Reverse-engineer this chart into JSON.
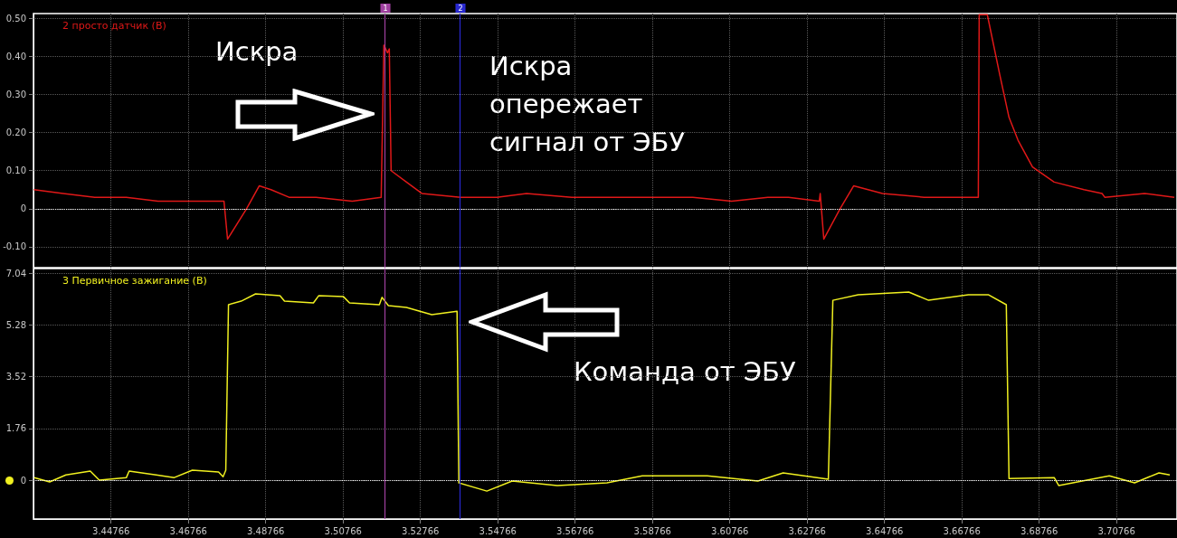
{
  "chart_data": [
    {
      "type": "line",
      "legend": "top left",
      "grid": true,
      "marker": "none",
      "tick_labels": "y",
      "annotations": [
        "Искра",
        "Искра опережает сигнал от ЭБУ",
        "1",
        "2"
      ],
      "xlim": [
        3.4276,
        3.7233
      ],
      "xticks": [
        3.44766,
        3.46766,
        3.48766,
        3.50766,
        3.52766,
        3.54766,
        3.56766,
        3.58766,
        3.60766,
        3.62766,
        3.64766,
        3.66766,
        3.68766,
        3.70766
      ],
      "ylim": [
        -0.155,
        0.513
      ],
      "yticks": [
        {
          "value": -0.1,
          "label": "-0.10"
        },
        0,
        {
          "value": 0.1,
          "label": "0.10"
        },
        {
          "value": 0.2,
          "label": "0.20"
        },
        {
          "value": 0.3,
          "label": "0.30"
        },
        {
          "value": 0.4,
          "label": "0.40"
        },
        {
          "value": 0.5,
          "label": "0.50"
        }
      ],
      "ref_lines": [
        {
          "axis": "y",
          "value": 0,
          "color": "#ffffff",
          "line_style": "dotted"
        },
        {
          "axis": "x",
          "value": 3.51844,
          "color": "#a040a0",
          "line_style": "solid"
        },
        {
          "axis": "x",
          "value": 3.53783,
          "color": "#2828d0",
          "line_style": "solid"
        }
      ],
      "series": [
        {
          "name": "2 просто датчик (В)",
          "color": "#e01818",
          "x": [
            3.4277,
            3.43528,
            3.44346,
            3.45163,
            3.45981,
            3.46798,
            3.47686,
            3.47779,
            3.4827,
            3.48597,
            3.48901,
            3.49368,
            3.50069,
            3.51003,
            3.51751,
            3.51821,
            3.51914,
            3.51961,
            3.52008,
            3.52405,
            3.52802,
            3.53806,
            3.54741,
            3.55512,
            3.5668,
            3.58245,
            3.5981,
            3.60814,
            3.61749,
            3.62286,
            3.6308,
            3.63104,
            3.63197,
            3.63618,
            3.63968,
            3.64715,
            3.6579,
            3.67192,
            3.67215,
            3.67425,
            3.67752,
            3.67986,
            3.68219,
            3.68593,
            3.69154,
            3.69925,
            3.70392,
            3.70462,
            3.7149,
            3.72261
          ],
          "values": [
            0.05,
            0.04,
            0.03,
            0.03,
            0.02,
            0.02,
            0.02,
            -0.08,
            0.0,
            0.06,
            0.05,
            0.03,
            0.03,
            0.02,
            0.03,
            0.43,
            0.41,
            0.42,
            0.1,
            0.07,
            0.04,
            0.03,
            0.03,
            0.04,
            0.03,
            0.03,
            0.03,
            0.02,
            0.03,
            0.03,
            0.02,
            0.04,
            -0.08,
            0.0,
            0.06,
            0.04,
            0.03,
            0.03,
            0.51,
            0.51,
            0.35,
            0.24,
            0.18,
            0.11,
            0.07,
            0.05,
            0.04,
            0.03,
            0.04,
            0.03
          ]
        }
      ]
    },
    {
      "type": "line",
      "legend": "top left",
      "grid": true,
      "marker": "none",
      "annotations": [
        "Команда от ЭБУ"
      ],
      "xlim": [
        3.4276,
        3.7233
      ],
      "xticks": [
        3.44766,
        3.46766,
        3.48766,
        3.50766,
        3.52766,
        3.54766,
        3.56766,
        3.58766,
        3.60766,
        3.62766,
        3.64766,
        3.66766,
        3.68766,
        3.70766
      ],
      "ylim": [
        -1.32,
        7.2
      ],
      "yticks": [
        0,
        1.76,
        3.52,
        5.28,
        7.04
      ],
      "ref_lines": [
        {
          "axis": "y",
          "value": 0,
          "color": "#ffffff",
          "line_style": "dotted"
        },
        {
          "axis": "x",
          "value": 3.51844,
          "color": "#a040a0",
          "line_style": "solid"
        },
        {
          "axis": "x",
          "value": 3.53783,
          "color": "#2828d0",
          "line_style": "solid"
        }
      ],
      "series": [
        {
          "name": "3 Первичное зажигание (В)",
          "color": "#f0f020",
          "x": [
            3.4278,
            3.43178,
            3.43598,
            3.44229,
            3.44462,
            3.45163,
            3.45233,
            3.45934,
            3.46401,
            3.46868,
            3.47546,
            3.47663,
            3.47733,
            3.47803,
            3.4813,
            3.48504,
            3.49134,
            3.49251,
            3.49999,
            3.50139,
            3.5077,
            3.50933,
            3.51704,
            3.51774,
            3.51938,
            3.52405,
            3.53059,
            3.53713,
            3.5376,
            3.54484,
            3.55138,
            3.56306,
            3.57591,
            3.58502,
            3.60184,
            3.61492,
            3.62146,
            3.63314,
            3.63431,
            3.64085,
            3.65393,
            3.65907,
            3.66935,
            3.67449,
            3.67916,
            3.67986,
            3.69154,
            3.69271,
            3.70579,
            3.71233,
            3.71864,
            3.72144
          ],
          "values": [
            0.09,
            -0.06,
            0.18,
            0.31,
            0.0,
            0.09,
            0.31,
            0.18,
            0.09,
            0.34,
            0.28,
            0.12,
            0.34,
            5.97,
            6.09,
            6.34,
            6.28,
            6.09,
            6.03,
            6.28,
            6.25,
            6.03,
            5.97,
            6.22,
            5.94,
            5.88,
            5.63,
            5.75,
            -0.09,
            -0.37,
            -0.03,
            -0.18,
            -0.09,
            0.15,
            0.15,
            -0.03,
            0.25,
            0.03,
            6.12,
            6.31,
            6.4,
            6.12,
            6.31,
            6.31,
            5.97,
            0.06,
            0.09,
            -0.18,
            0.15,
            -0.09,
            0.25,
            0.18
          ]
        }
      ]
    }
  ]
}
